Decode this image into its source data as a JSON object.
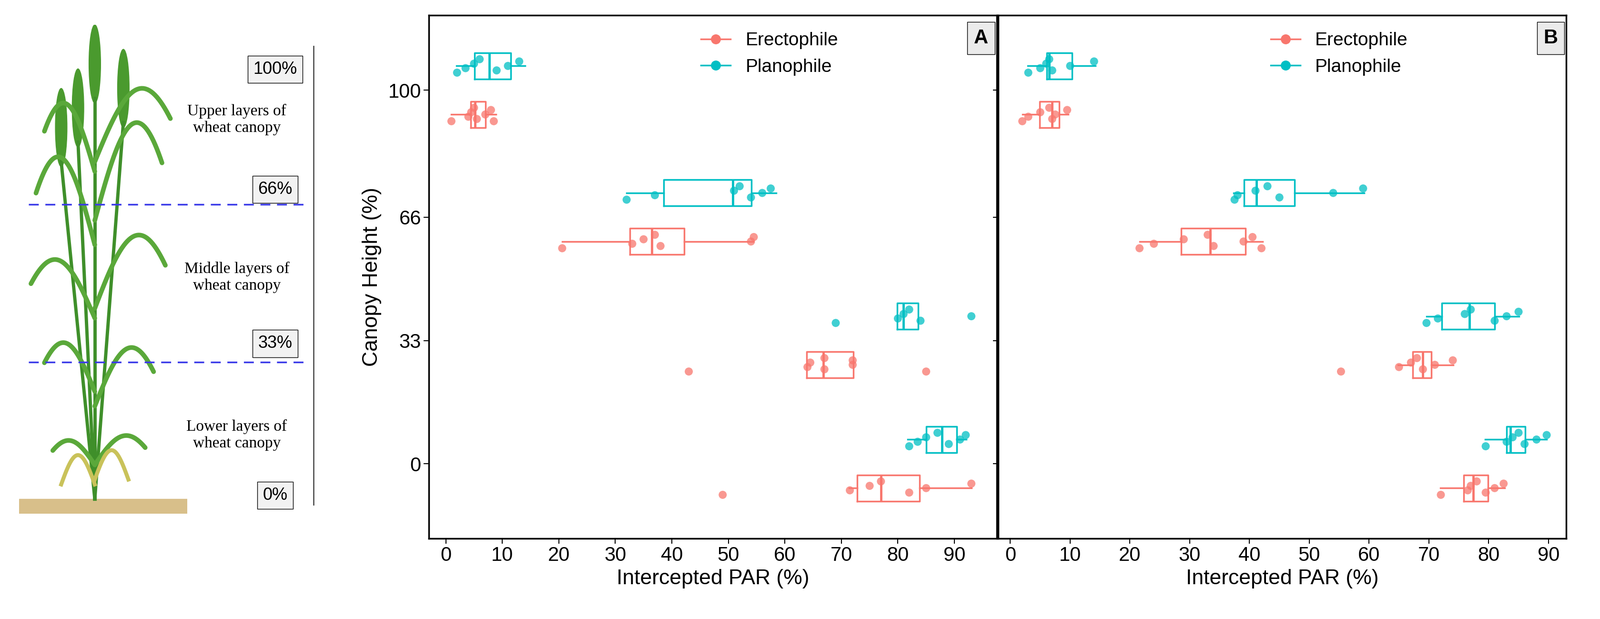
{
  "diagram": {
    "levels": [
      "100%",
      "66%",
      "33%",
      "0%"
    ],
    "layers": [
      "Upper layers of\nwheat canopy",
      "Middle layers of\nwheat canopy",
      "Lower layers of\nwheat canopy"
    ]
  },
  "chart_data": [
    {
      "type": "boxplot",
      "panel_label": "A",
      "orientation": "horizontal",
      "x_label": "Intercepted PAR (%)",
      "y_label": "Canopy Height (%)",
      "y": [
        100,
        66,
        33,
        0
      ],
      "xlim": [
        -3,
        97.5
      ],
      "xticks": [
        0,
        10,
        20,
        30,
        40,
        50,
        60,
        70,
        80,
        90
      ],
      "ylim": [
        -20,
        120
      ],
      "yticks": [
        0,
        33,
        66,
        100
      ],
      "grid": false,
      "legend": "upper center",
      "tick_labels": true,
      "series": [
        {
          "name": "Erectophile",
          "color": "#F8766D",
          "boxes": [
            {
              "whislo": 1,
              "q1": 4.4,
              "med": 5.2,
              "q3": 7,
              "whishi": 8.9
            },
            {
              "whislo": 20.6,
              "q1": 32.6,
              "med": 36.5,
              "q3": 42.2,
              "whishi": 54.4
            },
            {
              "whislo": 63.9,
              "q1": 63.9,
              "med": 66.8,
              "q3": 72.1,
              "whishi": 72.1
            },
            {
              "whislo": 71.4,
              "q1": 72.8,
              "med": 77,
              "q3": 83.8,
              "whishi": 93
            }
          ],
          "points": [
            [
              1,
              4,
              4.5,
              5,
              5.5,
              7,
              8,
              8.5
            ],
            [
              20.6,
              33,
              35,
              37,
              38,
              54,
              54.5
            ],
            [
              43,
              64,
              64.5,
              67,
              67,
              72,
              72,
              85
            ],
            [
              49,
              71.5,
              75,
              77,
              82,
              85,
              93
            ]
          ]
        },
        {
          "name": "Planophile",
          "color": "#00BFC4",
          "boxes": [
            {
              "whislo": 1.9,
              "q1": 5.1,
              "med": 7.7,
              "q3": 11.5,
              "whishi": 14
            },
            {
              "whislo": 32,
              "q1": 38.6,
              "med": 50.8,
              "q3": 54.1,
              "whishi": 58.5
            },
            {
              "whislo": 79.9,
              "q1": 79.9,
              "med": 81,
              "q3": 83.6,
              "whishi": 83.6
            },
            {
              "whislo": 81.7,
              "q1": 85,
              "med": 87.8,
              "q3": 90.4,
              "whishi": 92.1
            }
          ],
          "points": [
            [
              2,
              3.5,
              5,
              6,
              9,
              11,
              13
            ],
            [
              32,
              37,
              51,
              52,
              54,
              56,
              57.5
            ],
            [
              69,
              80,
              81,
              82,
              84,
              93
            ],
            [
              82,
              83.5,
              85,
              87,
              89,
              91,
              92
            ]
          ]
        }
      ]
    },
    {
      "type": "boxplot",
      "panel_label": "B",
      "orientation": "horizontal",
      "x_label": "Intercepted PAR (%)",
      "y": [
        100,
        66,
        33,
        0
      ],
      "xlim": [
        -2,
        93
      ],
      "xticks": [
        0,
        10,
        20,
        30,
        40,
        50,
        60,
        70,
        80,
        90
      ],
      "ylim": [
        -20,
        120
      ],
      "yticks": [
        0,
        33,
        66,
        100
      ],
      "grid": false,
      "legend": "upper center",
      "tick_labels": "x",
      "series": [
        {
          "name": "Erectophile",
          "color": "#F8766D",
          "boxes": [
            {
              "whislo": 2,
              "q1": 4.9,
              "med": 7,
              "q3": 8.2,
              "whishi": 9.7
            },
            {
              "whislo": 21.6,
              "q1": 28.6,
              "med": 33.4,
              "q3": 39.3,
              "whishi": 42.2
            },
            {
              "whislo": 64.8,
              "q1": 67.3,
              "med": 69,
              "q3": 70.4,
              "whishi": 74.1
            },
            {
              "whislo": 71.9,
              "q1": 75.8,
              "med": 77.4,
              "q3": 79.9,
              "whishi": 82.7
            }
          ],
          "points": [
            [
              2,
              3,
              5,
              6.5,
              7,
              7.5,
              9.5
            ],
            [
              21.6,
              24,
              29,
              33,
              34,
              39,
              40.5,
              42
            ],
            [
              55.3,
              65,
              67,
              68,
              69,
              71,
              74
            ],
            [
              72,
              76.5,
              77,
              78,
              79.5,
              81,
              82.5
            ]
          ]
        },
        {
          "name": "Planophile",
          "color": "#00BFC4",
          "boxes": [
            {
              "whislo": 2.9,
              "q1": 6.1,
              "med": 6.5,
              "q3": 10.3,
              "whishi": 14.2
            },
            {
              "whislo": 37.3,
              "q1": 39.1,
              "med": 41.2,
              "q3": 47.5,
              "whishi": 59.2
            },
            {
              "whislo": 69.6,
              "q1": 72.2,
              "med": 76.8,
              "q3": 81,
              "whishi": 85.1
            },
            {
              "whislo": 79.4,
              "q1": 83,
              "med": 83.6,
              "q3": 86.1,
              "whishi": 89.7
            }
          ],
          "points": [
            [
              3,
              5,
              6,
              6.5,
              7,
              10,
              14
            ],
            [
              37.5,
              38,
              41,
              43,
              45,
              54,
              59
            ],
            [
              69.6,
              71.5,
              76,
              77,
              81,
              83,
              85
            ],
            [
              79.5,
              83,
              84,
              85,
              86,
              88,
              89.7
            ]
          ]
        }
      ]
    }
  ]
}
